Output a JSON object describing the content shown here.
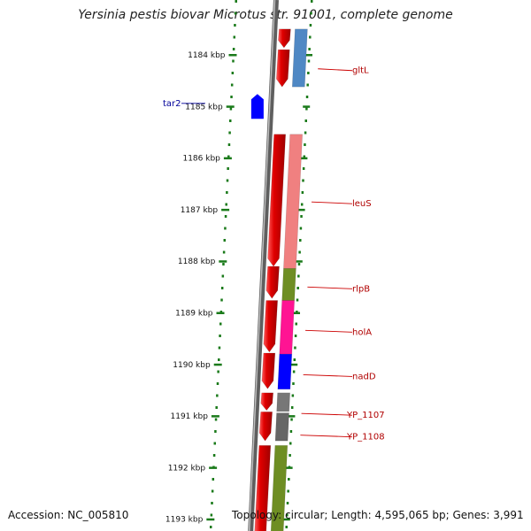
{
  "header": {
    "title": "Yersinia pestis biovar Microtus str. 91001, complete genome"
  },
  "footer": {
    "accession": "Accession: NC_005810",
    "summary": "Topology: circular; Length: 4,595,065 bp; Genes: 3,991"
  },
  "colors": {
    "forward_gene": "#e00000",
    "backbone": "#888888",
    "tick": "#1a7a1a",
    "label_line": "#cc0000"
  },
  "scale": {
    "ticks": [
      {
        "kbp": 1184,
        "label": "1184 kbp"
      },
      {
        "kbp": 1185,
        "label": "1185 kbp"
      },
      {
        "kbp": 1186,
        "label": "1186 kbp"
      },
      {
        "kbp": 1187,
        "label": "1187 kbp"
      },
      {
        "kbp": 1188,
        "label": "1188 kbp"
      },
      {
        "kbp": 1189,
        "label": "1189 kbp"
      },
      {
        "kbp": 1190,
        "label": "1190 kbp"
      },
      {
        "kbp": 1191,
        "label": "1191 kbp"
      },
      {
        "kbp": 1192,
        "label": "1192 kbp"
      },
      {
        "kbp": 1193,
        "label": "1193 kbp"
      }
    ]
  },
  "features": {
    "genes_track1": [
      {
        "start": 1183.5,
        "end": 1183.86
      },
      {
        "start": 1183.9,
        "end": 1184.62
      },
      {
        "start": 1185.54,
        "end": 1188.1
      },
      {
        "start": 1188.1,
        "end": 1188.72
      },
      {
        "start": 1188.76,
        "end": 1189.76
      },
      {
        "start": 1189.78,
        "end": 1190.47
      },
      {
        "start": 1190.55,
        "end": 1190.89
      },
      {
        "start": 1190.92,
        "end": 1191.48
      },
      {
        "start": 1191.57,
        "end": 1193.5
      }
    ],
    "genes_track2": [
      {
        "start": 1183.5,
        "end": 1184.62,
        "color": "#4f88c4",
        "name": "gltL"
      },
      {
        "start": 1185.54,
        "end": 1188.14,
        "color": "#f08080",
        "name": "leuS"
      },
      {
        "start": 1188.14,
        "end": 1188.76,
        "color": "#6e8e23",
        "name": "rlpB"
      },
      {
        "start": 1188.76,
        "end": 1189.8,
        "color": "#ff1493",
        "name": "holA"
      },
      {
        "start": 1189.8,
        "end": 1190.48,
        "color": "#0000ff",
        "name": "nadD"
      },
      {
        "start": 1190.55,
        "end": 1190.91,
        "color": "#777777",
        "name": "YP_1107"
      },
      {
        "start": 1190.94,
        "end": 1191.48,
        "color": "#666666",
        "name": "YP_1108"
      },
      {
        "start": 1191.57,
        "end": 1193.5,
        "color": "#6e8e23",
        "name": ""
      }
    ],
    "rna": {
      "name": "tar2",
      "start": 1184.76,
      "end": 1185.24,
      "color": "#0000ff"
    }
  },
  "labels": [
    {
      "text": "gltL",
      "kbp": 1184.27
    },
    {
      "text": "leuS",
      "kbp": 1186.85
    },
    {
      "text": "rlpB",
      "kbp": 1188.5
    },
    {
      "text": "holA",
      "kbp": 1189.34
    },
    {
      "text": "nadD",
      "kbp": 1190.2
    },
    {
      "text": "YP_1107",
      "kbp": 1190.95
    },
    {
      "text": "YP_1108",
      "kbp": 1191.37
    }
  ],
  "rna_label": {
    "text": "tar2",
    "kbp": 1184.94
  }
}
